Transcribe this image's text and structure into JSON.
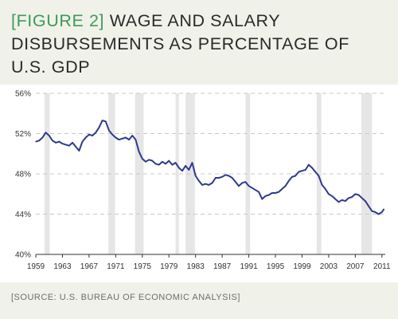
{
  "header": {
    "figure_tag": "[FIGURE 2]",
    "title_text": "WAGE AND SALARY DISBURSEMENTS AS PERCENTAGE OF U.S. GDP"
  },
  "footer": {
    "source": "[SOURCE: U.S. BUREAU OF ECONOMIC ANALYSIS]"
  },
  "colors": {
    "background": "#f0f1e9",
    "plot_background": "#ffffff",
    "line": "#2e3a8c",
    "recession_band": "#e6e6e6",
    "gridline": "#c8c8c8",
    "figure_tag": "#3f9a5a"
  },
  "chart_data": {
    "type": "line",
    "title": "WAGE AND SALARY DISBURSEMENTS AS PERCENTAGE OF U.S. GDP",
    "xlabel": "",
    "ylabel": "",
    "xlim": [
      1959,
      2011.5
    ],
    "ylim": [
      40,
      56
    ],
    "y_ticks": [
      40,
      44,
      48,
      52,
      56
    ],
    "y_tick_labels": [
      "40%",
      "44%",
      "48%",
      "52%",
      "56%"
    ],
    "x_ticks": [
      1959,
      1963,
      1967,
      1971,
      1975,
      1979,
      1983,
      1987,
      1991,
      1995,
      1999,
      2003,
      2007,
      2011
    ],
    "x_tick_labels": [
      "1959",
      "1963",
      "1967",
      "1971",
      "1975",
      "1979",
      "1983",
      "1987",
      "1991",
      "1995",
      "1999",
      "2003",
      "2007",
      "2011"
    ],
    "grid": "horizontal dashed",
    "recession_bands": [
      [
        1960.3,
        1961.1
      ],
      [
        1969.9,
        1970.9
      ],
      [
        1973.9,
        1975.2
      ],
      [
        1980.0,
        1980.5
      ],
      [
        1981.5,
        1982.9
      ],
      [
        1990.5,
        1991.2
      ],
      [
        2001.2,
        2001.9
      ],
      [
        2007.9,
        2009.5
      ]
    ],
    "series": [
      {
        "x": [
          1959.0,
          1959.5,
          1960.0,
          1960.5,
          1961.0,
          1961.5,
          1962.0,
          1962.5,
          1963.0,
          1963.5,
          1964.0,
          1964.5,
          1965.0,
          1965.5,
          1966.0,
          1966.5,
          1967.0,
          1967.5,
          1968.0,
          1968.5,
          1969.0,
          1969.5,
          1970.0,
          1970.5,
          1971.0,
          1971.5,
          1972.0,
          1972.5,
          1973.0,
          1973.5,
          1974.0,
          1974.5,
          1975.0,
          1975.5,
          1976.0,
          1976.5,
          1977.0,
          1977.5,
          1978.0,
          1978.5,
          1979.0,
          1979.5,
          1980.0,
          1980.5,
          1981.0,
          1981.5,
          1982.0,
          1982.5,
          1983.0,
          1983.5,
          1984.0,
          1984.5,
          1985.0,
          1985.5,
          1986.0,
          1986.5,
          1987.0,
          1987.5,
          1988.0,
          1988.5,
          1989.0,
          1989.5,
          1990.0,
          1990.5,
          1991.0,
          1991.5,
          1992.0,
          1992.5,
          1993.0,
          1993.5,
          1994.0,
          1994.5,
          1995.0,
          1995.5,
          1996.0,
          1996.5,
          1997.0,
          1997.5,
          1998.0,
          1998.5,
          1999.0,
          1999.5,
          2000.0,
          2000.5,
          2001.0,
          2001.5,
          2002.0,
          2002.5,
          2003.0,
          2003.5,
          2004.0,
          2004.5,
          2005.0,
          2005.5,
          2006.0,
          2006.5,
          2007.0,
          2007.5,
          2008.0,
          2008.5,
          2009.0,
          2009.5,
          2010.0,
          2010.5,
          2011.0,
          2011.3
        ],
        "values": [
          51.2,
          51.3,
          51.6,
          52.1,
          51.8,
          51.3,
          51.1,
          51.2,
          51.0,
          50.9,
          50.8,
          51.1,
          50.7,
          50.3,
          51.2,
          51.6,
          51.9,
          51.8,
          52.1,
          52.6,
          53.3,
          53.2,
          52.3,
          51.9,
          51.6,
          51.4,
          51.5,
          51.6,
          51.4,
          51.8,
          51.4,
          50.2,
          49.5,
          49.2,
          49.4,
          49.3,
          49.0,
          48.9,
          49.2,
          49.0,
          49.3,
          48.9,
          49.1,
          48.6,
          48.3,
          48.8,
          48.4,
          49.1,
          47.8,
          47.3,
          46.9,
          47.0,
          46.9,
          47.1,
          47.6,
          47.6,
          47.7,
          47.9,
          47.8,
          47.6,
          47.2,
          46.8,
          47.1,
          47.2,
          46.8,
          46.6,
          46.4,
          46.2,
          45.5,
          45.8,
          45.9,
          46.1,
          46.1,
          46.2,
          46.5,
          46.8,
          47.3,
          47.7,
          47.8,
          48.2,
          48.3,
          48.4,
          48.9,
          48.6,
          48.2,
          47.8,
          46.9,
          46.5,
          46.0,
          45.8,
          45.5,
          45.2,
          45.4,
          45.3,
          45.6,
          45.7,
          46.0,
          45.9,
          45.6,
          45.3,
          44.8,
          44.3,
          44.2,
          44.0,
          44.2,
          44.5
        ]
      }
    ]
  }
}
